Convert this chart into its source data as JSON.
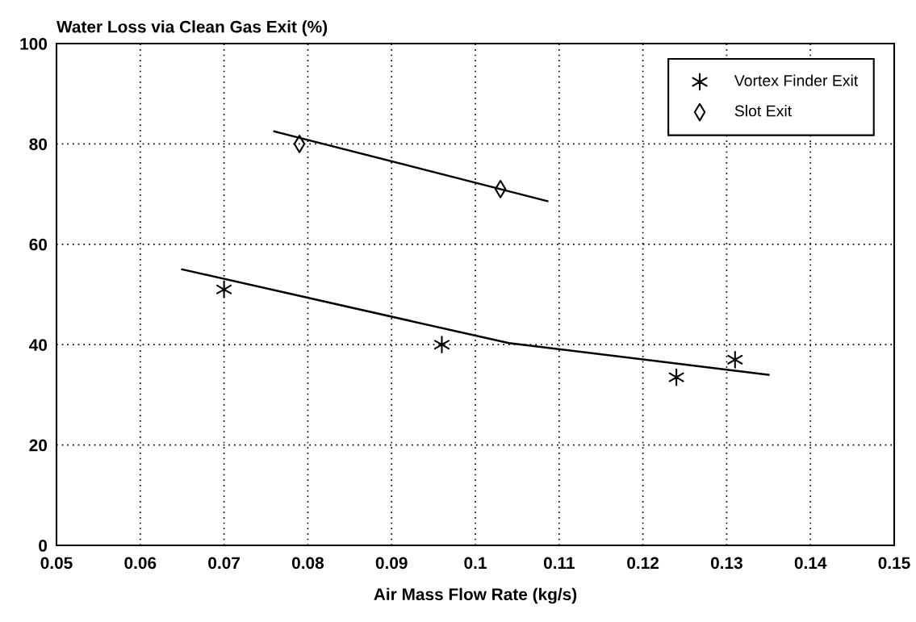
{
  "chart_data": {
    "type": "scatter",
    "xlabel": "Air Mass Flow Rate (kg/s)",
    "ylabel": "Water Loss via Clean Gas Exit (%)",
    "xlim": [
      0.05,
      0.15
    ],
    "xticks": [
      0.05,
      0.06,
      0.07,
      0.08,
      0.09,
      0.1,
      0.11,
      0.12,
      0.13,
      0.14,
      0.15
    ],
    "ylim": [
      0,
      100
    ],
    "yticks": [
      0,
      20,
      40,
      60,
      80,
      100
    ],
    "grid": true,
    "legend": "top right",
    "series": [
      {
        "name": "Vortex Finder Exit",
        "marker": "cross",
        "color": "#000000",
        "x": [
          0.07,
          0.096,
          0.124,
          0.131
        ],
        "values": [
          51,
          40,
          33.5,
          37
        ]
      },
      {
        "name": "Slot Exit",
        "marker": "diamond",
        "color": "#000000",
        "x": [
          0.079,
          0.103
        ],
        "values": [
          80,
          71
        ]
      },
      {
        "type": "line",
        "marker": "none",
        "line_style": "solid",
        "color": "#000000",
        "x": [
          0.065,
          0.104,
          0.135
        ],
        "values": [
          55,
          40.3,
          34
        ]
      },
      {
        "type": "line",
        "marker": "none",
        "line_style": "solid",
        "color": "#000000",
        "x": [
          0.076,
          0.1086
        ],
        "values": [
          82.5,
          68.6
        ]
      }
    ]
  }
}
